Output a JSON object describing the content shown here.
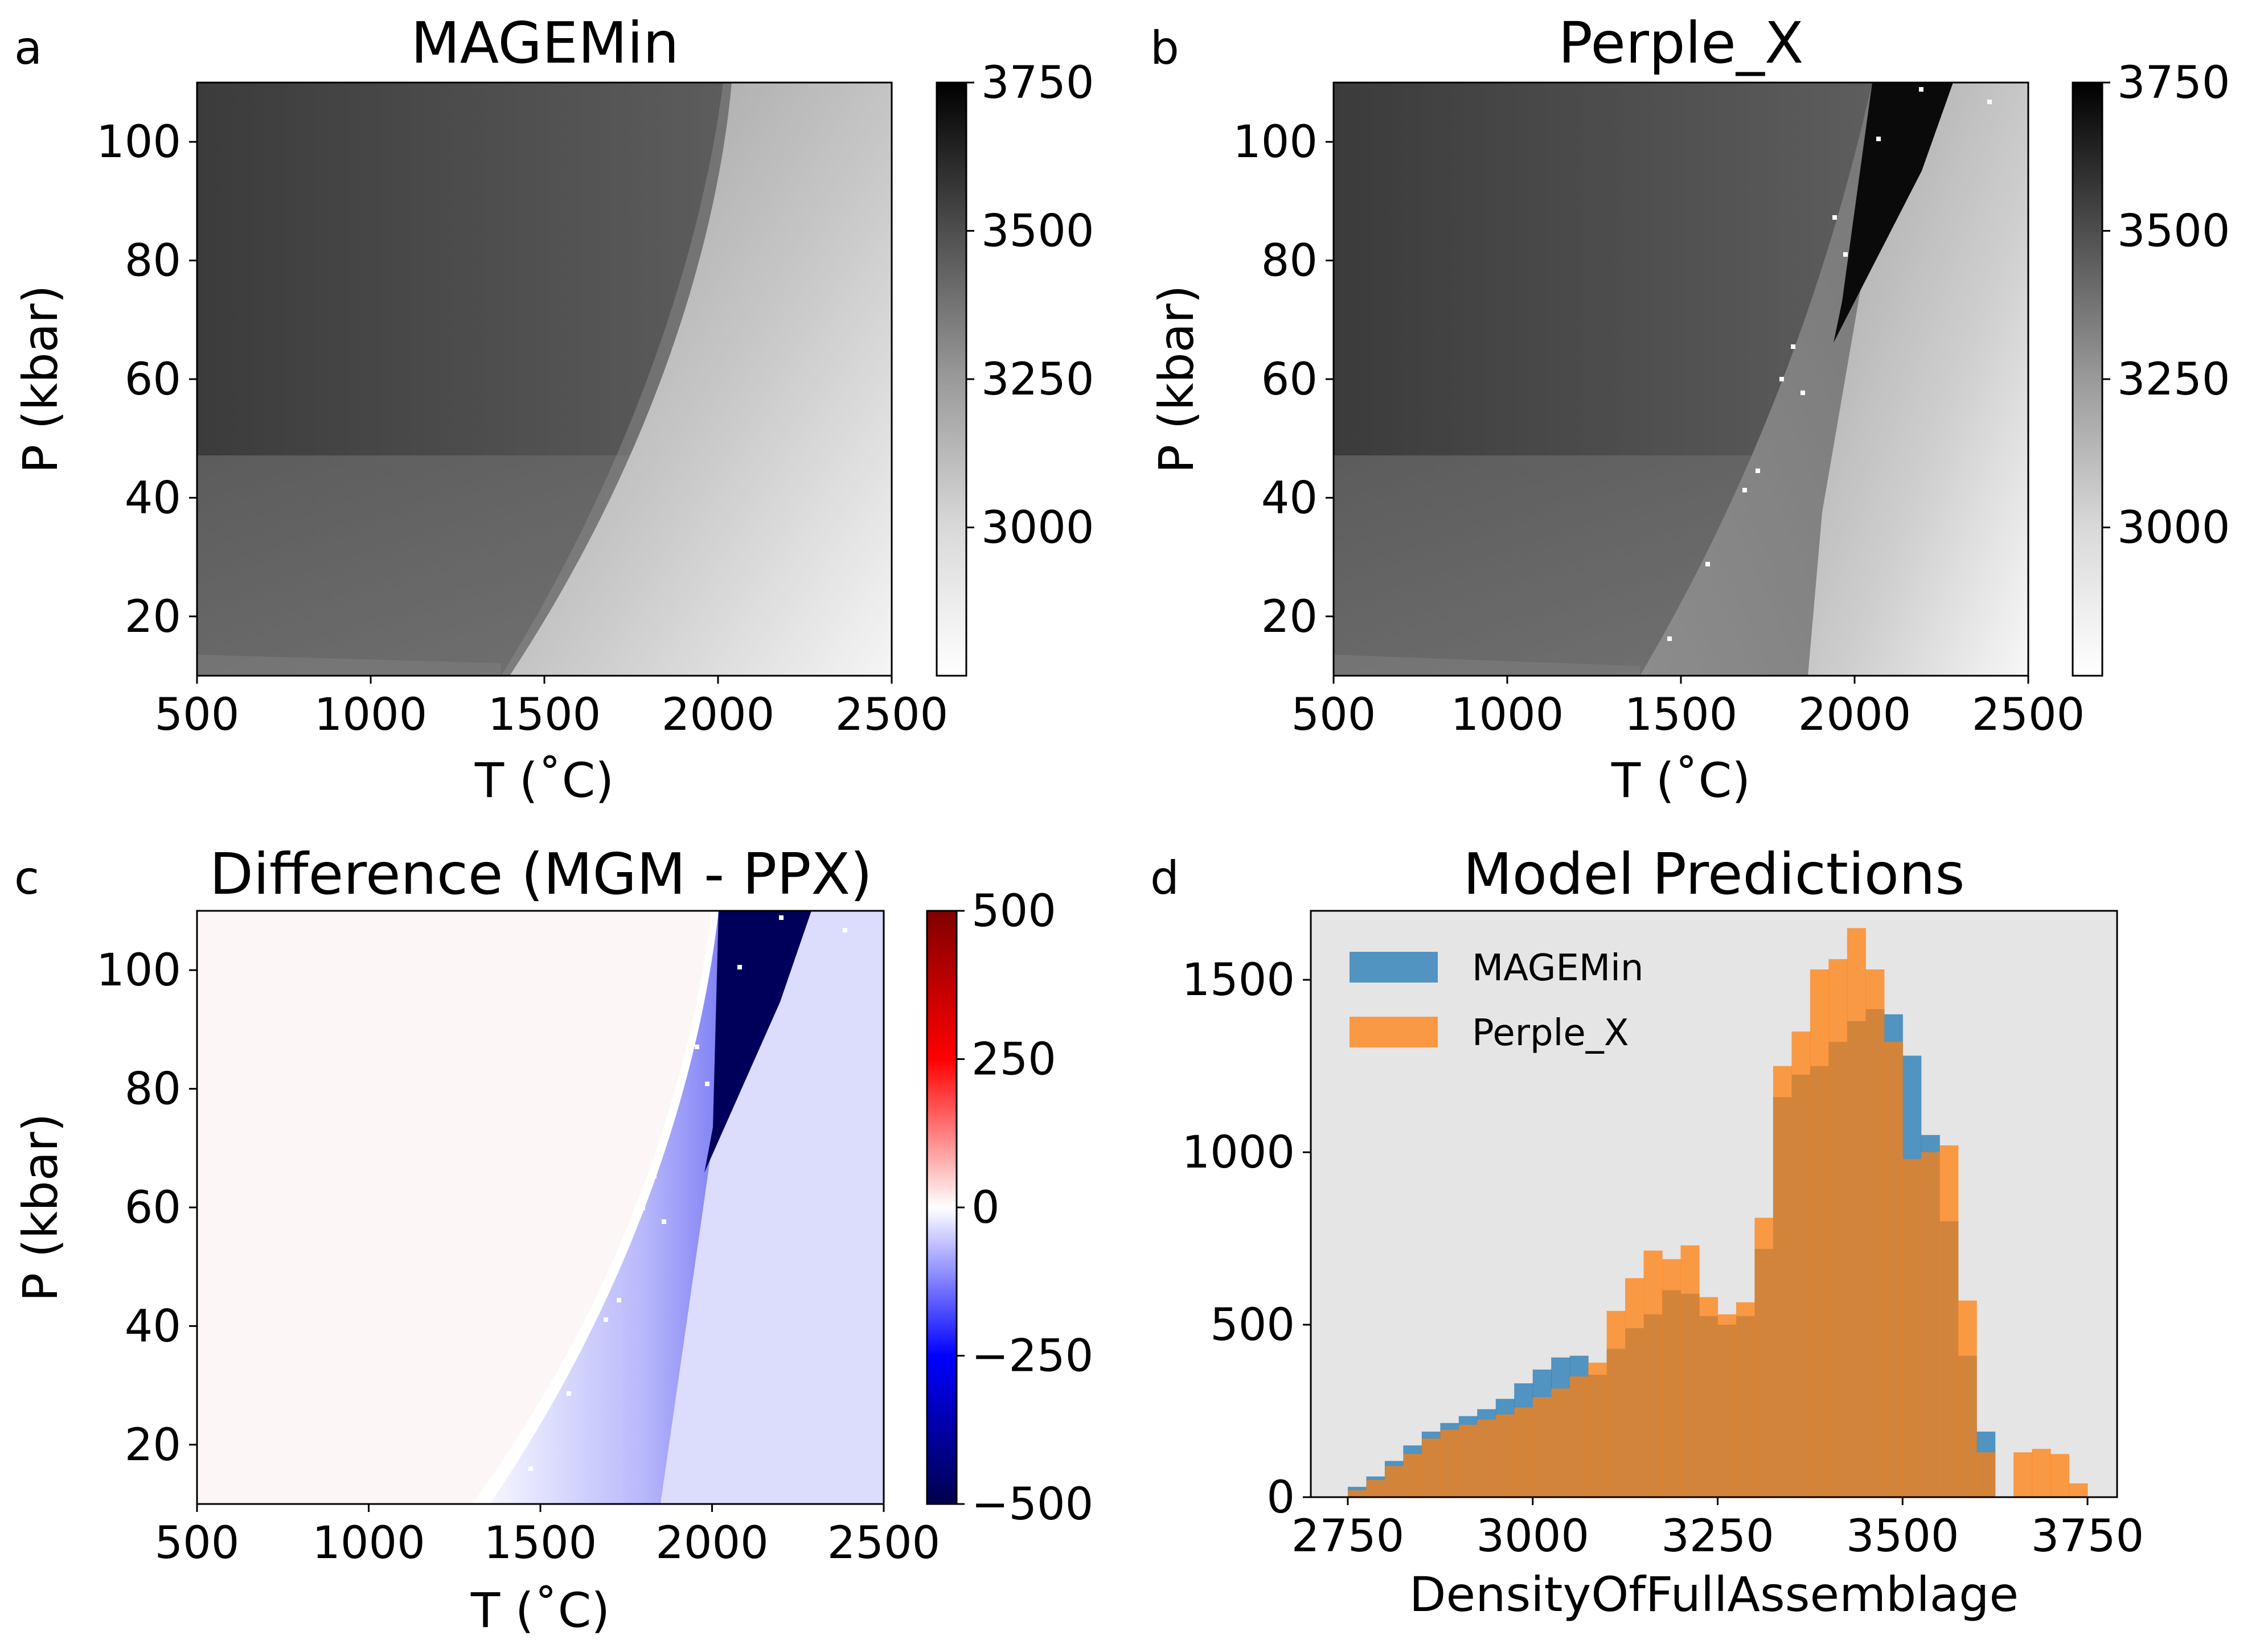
{
  "chart_data": [
    {
      "panel": "a",
      "type": "heatmap",
      "title": "MAGEMin",
      "xlabel": "T (˚C)",
      "ylabel": "P (kbar)",
      "xlim": [
        500,
        2500
      ],
      "ylim": [
        10,
        110
      ],
      "xticks": [
        "500",
        "1000",
        "1500",
        "2000",
        "2500"
      ],
      "yticks": [
        "20",
        "40",
        "60",
        "80",
        "100"
      ],
      "colorbar": {
        "range": [
          2750,
          3750
        ],
        "ticks": [
          "3000",
          "3250",
          "3500",
          "3750"
        ],
        "cmap": "Greys"
      },
      "field_description": "density decreases toward high T; curved boundary near 1300-2000 °C"
    },
    {
      "panel": "b",
      "type": "heatmap",
      "title": "Perple_X",
      "xlabel": "T (˚C)",
      "ylabel": "P (kbar)",
      "xlim": [
        500,
        2500
      ],
      "ylim": [
        10,
        110
      ],
      "xticks": [
        "500",
        "1000",
        "1500",
        "2000",
        "2500"
      ],
      "yticks": [
        "20",
        "40",
        "60",
        "80",
        "100"
      ],
      "colorbar": {
        "range": [
          2750,
          3750
        ],
        "ticks": [
          "3000",
          "3250",
          "3500",
          "3750"
        ],
        "cmap": "Greys"
      },
      "field_description": "sharp step near 1850-2000 °C with a dense (black) wedge above 65 kbar"
    },
    {
      "panel": "c",
      "type": "heatmap",
      "title": "Difference (MGM - PPX)",
      "xlabel": "T (˚C)",
      "ylabel": "P (kbar)",
      "xlim": [
        500,
        2500
      ],
      "ylim": [
        10,
        110
      ],
      "xticks": [
        "500",
        "1000",
        "1500",
        "2000",
        "2500"
      ],
      "yticks": [
        "20",
        "40",
        "60",
        "80",
        "100"
      ],
      "colorbar": {
        "range": [
          -500,
          500
        ],
        "ticks": [
          "−500",
          "−250",
          "0",
          "250",
          "500"
        ],
        "cmap": "seismic"
      },
      "field_description": "near zero at low T, negative (blue) band along the step, strongly negative wedge above 65 kbar"
    },
    {
      "panel": "d",
      "type": "histogram",
      "title": "Model Predictions",
      "xlabel": "DensityOfFullAssemblage",
      "ylabel": "",
      "xlim": [
        2700,
        3790
      ],
      "ylim": [
        0,
        1700
      ],
      "xticks": [
        "2750",
        "3000",
        "3250",
        "3500",
        "3750"
      ],
      "yticks": [
        "0",
        "500",
        "1000",
        "1500"
      ],
      "bin_width": 25,
      "legend_position": "top-left",
      "series": [
        {
          "name": "MAGEMin",
          "color": "#1f77b4",
          "bin_starts": [
            2750,
            2775,
            2800,
            2825,
            2850,
            2875,
            2900,
            2925,
            2950,
            2975,
            3000,
            3025,
            3050,
            3075,
            3100,
            3125,
            3150,
            3175,
            3200,
            3225,
            3250,
            3275,
            3300,
            3325,
            3350,
            3375,
            3400,
            3425,
            3450,
            3475,
            3500,
            3525,
            3550,
            3575,
            3600,
            3625,
            3650,
            3675,
            3700,
            3725
          ],
          "values": [
            30,
            60,
            105,
            150,
            190,
            215,
            235,
            255,
            285,
            330,
            370,
            405,
            410,
            355,
            430,
            490,
            530,
            600,
            590,
            525,
            500,
            525,
            720,
            1160,
            1225,
            1250,
            1320,
            1380,
            1415,
            1400,
            1280,
            1050,
            800,
            410,
            190,
            0,
            0,
            0,
            0,
            0
          ]
        },
        {
          "name": "Perple_X",
          "color": "#ff7f0e",
          "bin_starts": [
            2750,
            2775,
            2800,
            2825,
            2850,
            2875,
            2900,
            2925,
            2950,
            2975,
            3000,
            3025,
            3050,
            3075,
            3100,
            3125,
            3150,
            3175,
            3200,
            3225,
            3250,
            3275,
            3300,
            3325,
            3350,
            3375,
            3400,
            3425,
            3450,
            3475,
            3500,
            3525,
            3550,
            3575,
            3600,
            3625,
            3650,
            3675,
            3700,
            3725
          ],
          "values": [
            20,
            50,
            90,
            125,
            170,
            195,
            210,
            225,
            240,
            260,
            290,
            315,
            350,
            390,
            540,
            635,
            715,
            690,
            730,
            580,
            530,
            565,
            810,
            1250,
            1350,
            1530,
            1560,
            1650,
            1530,
            1320,
            980,
            1000,
            1020,
            570,
            130,
            0,
            130,
            140,
            125,
            40
          ]
        }
      ]
    }
  ]
}
